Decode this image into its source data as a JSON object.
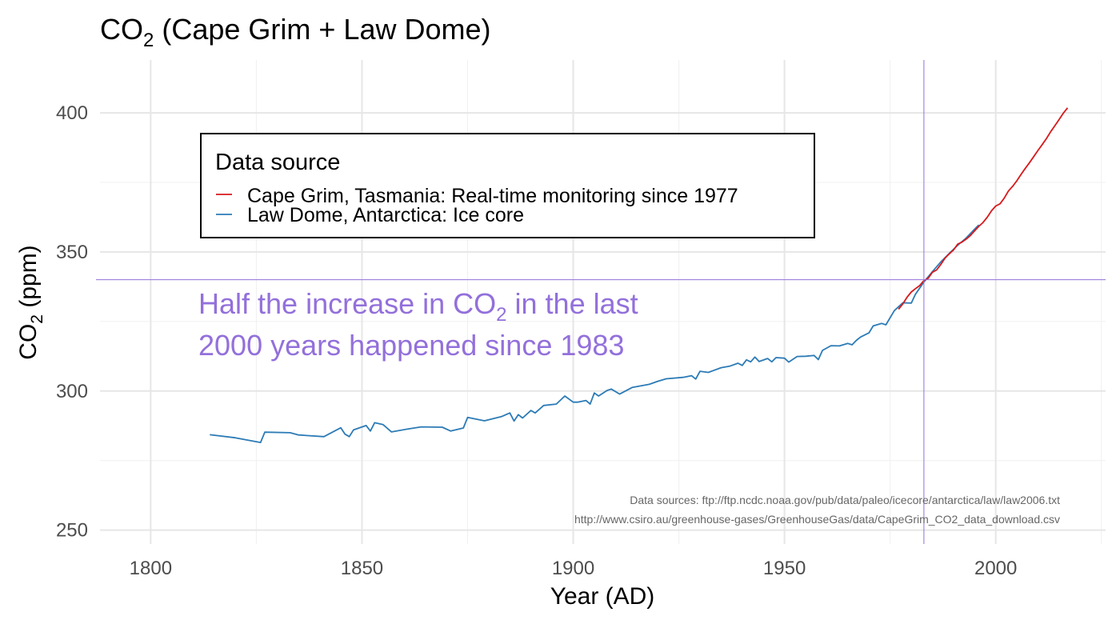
{
  "chart_data": {
    "type": "line",
    "title": {
      "main": "CO",
      "sub": "2",
      "rest": " (Cape Grim + Law Dome)"
    },
    "xlabel": "Year (AD)",
    "ylabel": {
      "main": "CO",
      "sub": "2",
      "rest": " (ppm)"
    },
    "xlim": [
      1788,
      2026
    ],
    "ylim": [
      245,
      419
    ],
    "x_ticks": [
      1800,
      1850,
      1900,
      1950,
      2000
    ],
    "y_ticks": [
      250,
      300,
      350,
      400
    ],
    "grid": true,
    "legend": {
      "title": "Data source",
      "placement": "top-left",
      "entries": [
        {
          "label": "Cape Grim, Tasmania: Real-time monitoring since 1977",
          "color": "#d7191c"
        },
        {
          "label": "Law Dome, Antarctica: Ice core",
          "color": "#2c7bb6"
        }
      ]
    },
    "reference_lines": {
      "color": "#9370db",
      "vertical_x": 1983,
      "horizontal_y": 340
    },
    "annotation": {
      "line1_main": "Half the increase in CO",
      "line1_sub": "2",
      "line1_rest": " in the last",
      "line2": "2000 years happened since 1983",
      "color": "#9370db"
    },
    "caption": [
      "Data sources: ftp://ftp.ncdc.noaa.gov/pub/data/paleo/icecore/antarctica/law/law2006.txt",
      "http://www.csiro.au/greenhouse-gases/GreenhouseGas/data/CapeGrim_CO2_data_download.csv"
    ],
    "series": [
      {
        "name": "Law Dome, Antarctica: Ice core",
        "color": "#2c7bb6",
        "points": [
          [
            1814,
            284.3
          ],
          [
            1820,
            283.2
          ],
          [
            1826,
            281.5
          ],
          [
            1827,
            285.2
          ],
          [
            1833,
            285.0
          ],
          [
            1835,
            284.2
          ],
          [
            1841,
            283.6
          ],
          [
            1845,
            286.8
          ],
          [
            1846,
            284.5
          ],
          [
            1847,
            283.6
          ],
          [
            1848,
            286.0
          ],
          [
            1851,
            287.6
          ],
          [
            1852,
            285.6
          ],
          [
            1853,
            288.6
          ],
          [
            1855,
            287.9
          ],
          [
            1857,
            285.3
          ],
          [
            1861,
            286.4
          ],
          [
            1864,
            287.1
          ],
          [
            1869,
            287.0
          ],
          [
            1871,
            285.6
          ],
          [
            1874,
            286.7
          ],
          [
            1875,
            290.5
          ],
          [
            1879,
            289.3
          ],
          [
            1883,
            290.8
          ],
          [
            1885,
            292.1
          ],
          [
            1886,
            289.2
          ],
          [
            1887,
            291.5
          ],
          [
            1888,
            290.3
          ],
          [
            1890,
            293.0
          ],
          [
            1891,
            292.1
          ],
          [
            1893,
            294.8
          ],
          [
            1896,
            295.3
          ],
          [
            1898,
            298.2
          ],
          [
            1900,
            296.0
          ],
          [
            1901,
            296.0
          ],
          [
            1903,
            296.6
          ],
          [
            1904,
            295.3
          ],
          [
            1905,
            299.3
          ],
          [
            1906,
            298.2
          ],
          [
            1908,
            300.2
          ],
          [
            1909,
            300.7
          ],
          [
            1911,
            298.9
          ],
          [
            1914,
            301.3
          ],
          [
            1918,
            302.4
          ],
          [
            1920,
            303.5
          ],
          [
            1922,
            304.4
          ],
          [
            1926,
            304.9
          ],
          [
            1928,
            305.5
          ],
          [
            1929,
            304.3
          ],
          [
            1930,
            307.1
          ],
          [
            1932,
            306.7
          ],
          [
            1935,
            308.4
          ],
          [
            1937,
            308.9
          ],
          [
            1939,
            310.0
          ],
          [
            1940,
            309.2
          ],
          [
            1941,
            311.2
          ],
          [
            1942,
            310.5
          ],
          [
            1943,
            312.2
          ],
          [
            1944,
            310.6
          ],
          [
            1946,
            311.7
          ],
          [
            1947,
            310.5
          ],
          [
            1948,
            312.0
          ],
          [
            1950,
            311.8
          ],
          [
            1951,
            310.4
          ],
          [
            1953,
            312.4
          ],
          [
            1955,
            312.5
          ],
          [
            1957,
            312.8
          ],
          [
            1958,
            311.3
          ],
          [
            1959,
            314.6
          ],
          [
            1961,
            316.3
          ],
          [
            1963,
            316.2
          ],
          [
            1965,
            317.1
          ],
          [
            1966,
            316.6
          ],
          [
            1967,
            318.2
          ],
          [
            1968,
            319.4
          ],
          [
            1970,
            320.9
          ],
          [
            1971,
            323.4
          ],
          [
            1973,
            324.3
          ],
          [
            1974,
            323.8
          ],
          [
            1976,
            328.9
          ],
          [
            1978,
            331.7
          ],
          [
            1980,
            331.6
          ],
          [
            1981,
            334.8
          ],
          [
            1983,
            339.2
          ],
          [
            1985,
            342.9
          ],
          [
            1987,
            346.4
          ],
          [
            1989,
            349.5
          ],
          [
            1991,
            352.4
          ],
          [
            1993,
            355.0
          ],
          [
            1995,
            358.2
          ],
          [
            1996,
            359.7
          ]
        ]
      },
      {
        "name": "Cape Grim, Tasmania: Real-time monitoring since 1977",
        "color": "#d7191c",
        "points": [
          [
            1977,
            329.4
          ],
          [
            1978,
            331.3
          ],
          [
            1979,
            333.7
          ],
          [
            1980,
            335.6
          ],
          [
            1981,
            336.8
          ],
          [
            1982,
            337.9
          ],
          [
            1983,
            339.7
          ],
          [
            1984,
            340.5
          ],
          [
            1985,
            342.7
          ],
          [
            1986,
            343.5
          ],
          [
            1987,
            345.5
          ],
          [
            1988,
            347.8
          ],
          [
            1989,
            349.3
          ],
          [
            1990,
            350.7
          ],
          [
            1991,
            352.8
          ],
          [
            1992,
            353.5
          ],
          [
            1993,
            354.6
          ],
          [
            1994,
            355.9
          ],
          [
            1995,
            357.6
          ],
          [
            1996,
            359.2
          ],
          [
            1997,
            360.6
          ],
          [
            1998,
            362.5
          ],
          [
            1999,
            364.8
          ],
          [
            2000,
            366.5
          ],
          [
            2001,
            367.3
          ],
          [
            2002,
            369.3
          ],
          [
            2003,
            371.9
          ],
          [
            2004,
            373.6
          ],
          [
            2005,
            375.6
          ],
          [
            2006,
            377.9
          ],
          [
            2007,
            380.1
          ],
          [
            2008,
            382.1
          ],
          [
            2009,
            384.3
          ],
          [
            2010,
            386.5
          ],
          [
            2011,
            388.6
          ],
          [
            2012,
            390.8
          ],
          [
            2013,
            393.2
          ],
          [
            2014,
            395.4
          ],
          [
            2015,
            397.6
          ],
          [
            2016,
            399.9
          ],
          [
            2017,
            401.8
          ]
        ]
      }
    ]
  }
}
